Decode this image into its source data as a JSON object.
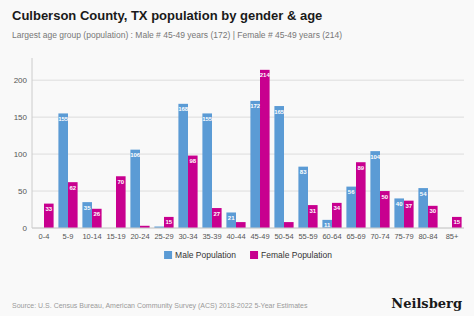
{
  "chart_data": {
    "type": "bar",
    "title": "Culberson County, TX population by gender & age",
    "subtitle": "Largest age group (population) : Male # 45-49 years (172) | Female # 45-49 years (214)",
    "source": "Source: U.S. Census Bureau, American Community Survey (ACS) 2018-2022 5-Year Estimates",
    "brand": "Neilsberg",
    "categories": [
      "0-4",
      "5-9",
      "10-14",
      "15-19",
      "20-24",
      "25-29",
      "30-34",
      "35-39",
      "40-44",
      "45-49",
      "50-54",
      "55-59",
      "60-64",
      "65-69",
      "70-74",
      "75-79",
      "80-84",
      "85+"
    ],
    "series": [
      {
        "name": "Male Population",
        "color": "#5b9bd5",
        "values": [
          0,
          155,
          35,
          0,
          106,
          2,
          168,
          155,
          21,
          172,
          165,
          83,
          11,
          56,
          104,
          40,
          54,
          0
        ],
        "value_labels": [
          null,
          "155",
          "35",
          null,
          "106",
          null,
          "168",
          "155",
          "21",
          "172",
          "165",
          "83",
          "11",
          "56",
          "104",
          "40",
          "54",
          null
        ]
      },
      {
        "name": "Female Population",
        "color": "#c8008f",
        "values": [
          33,
          62,
          26,
          70,
          3,
          15,
          98,
          27,
          8,
          214,
          8,
          31,
          34,
          89,
          50,
          37,
          30,
          15
        ],
        "value_labels": [
          "33",
          "62",
          "26",
          "70",
          null,
          "15",
          "98",
          "27",
          null,
          "214",
          null,
          "31",
          "34",
          "89",
          "50",
          "37",
          "30",
          "15"
        ]
      }
    ],
    "ylim": [
      0,
      230
    ],
    "yticks": [
      0,
      50,
      100,
      150,
      200
    ],
    "grid": true,
    "legend": "bottom",
    "data_labels": true
  }
}
